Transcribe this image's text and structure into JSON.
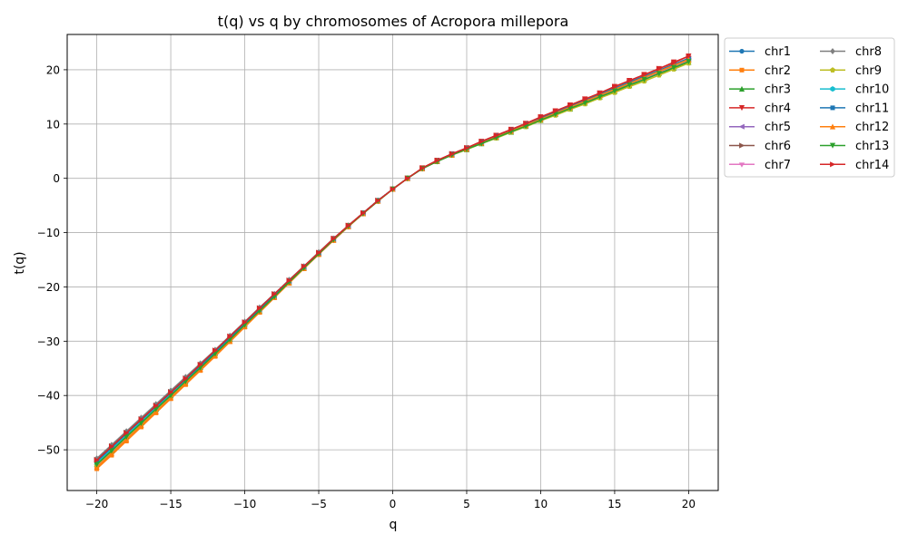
{
  "chart_data": {
    "type": "line",
    "title": "t(q) vs q by chromosomes of Acropora millepora",
    "xlabel": "q",
    "ylabel": "t(q)",
    "xlim": [
      -22,
      22
    ],
    "ylim": [
      -57.5,
      26.5
    ],
    "xticks": [
      -20,
      -15,
      -10,
      -5,
      0,
      5,
      10,
      15,
      20
    ],
    "xtick_labels": [
      "−20",
      "−15",
      "−10",
      "−5",
      "0",
      "5",
      "10",
      "15",
      "20"
    ],
    "yticks": [
      -50,
      -40,
      -30,
      -20,
      -10,
      0,
      10,
      20
    ],
    "ytick_labels": [
      "−50",
      "−40",
      "−30",
      "−20",
      "−10",
      "0",
      "10",
      "20"
    ],
    "grid": true,
    "legend": {
      "placement": "outside-right",
      "columns": 2
    },
    "x": [
      -20,
      -19,
      -18,
      -17,
      -16,
      -15,
      -14,
      -13,
      -12,
      -11,
      -10,
      -9,
      -8,
      -7,
      -6,
      -5,
      -4,
      -3,
      -2,
      -1,
      0,
      1,
      2,
      3,
      4,
      5,
      6,
      7,
      8,
      9,
      10,
      11,
      12,
      13,
      14,
      15,
      16,
      17,
      18,
      19,
      20
    ],
    "series": [
      {
        "name": "chr1",
        "color": "#1f77b4",
        "marker": "circle",
        "values": [
          -52.2,
          -49.7,
          -47.1,
          -44.6,
          -42.1,
          -39.6,
          -37.1,
          -34.6,
          -32.0,
          -29.5,
          -26.8,
          -24.2,
          -21.5,
          -19.0,
          -16.4,
          -13.8,
          -11.2,
          -8.8,
          -6.4,
          -4.1,
          -2.0,
          0.0,
          1.8,
          3.2,
          4.4,
          5.5,
          6.6,
          7.7,
          8.8,
          9.9,
          11.0,
          12.1,
          13.2,
          14.3,
          15.4,
          16.5,
          17.6,
          18.7,
          19.8,
          20.9,
          22.0
        ]
      },
      {
        "name": "chr2",
        "color": "#ff7f0e",
        "marker": "square",
        "values": [
          -53.5,
          -51.0,
          -48.4,
          -45.8,
          -43.2,
          -40.6,
          -38.0,
          -35.4,
          -32.8,
          -30.1,
          -27.4,
          -24.7,
          -22.0,
          -19.3,
          -16.6,
          -14.0,
          -11.4,
          -8.9,
          -6.5,
          -4.2,
          -2.0,
          0.0,
          1.8,
          3.1,
          4.3,
          5.4,
          6.5,
          7.6,
          8.6,
          9.7,
          10.8,
          11.9,
          13.0,
          14.1,
          15.1,
          16.2,
          17.3,
          18.4,
          19.5,
          20.6,
          21.7
        ]
      },
      {
        "name": "chr3",
        "color": "#2ca02c",
        "marker": "triangle-up",
        "values": [
          -52.6,
          -50.1,
          -47.5,
          -45.0,
          -42.5,
          -40.0,
          -37.4,
          -34.8,
          -32.2,
          -29.6,
          -27.0,
          -24.4,
          -21.8,
          -19.2,
          -16.5,
          -13.9,
          -11.3,
          -8.8,
          -6.5,
          -4.1,
          -2.0,
          0.0,
          1.8,
          3.1,
          4.3,
          5.3,
          6.4,
          7.5,
          8.5,
          9.6,
          10.7,
          11.8,
          12.8,
          13.9,
          15.0,
          16.0,
          17.1,
          18.2,
          19.3,
          20.3,
          21.4
        ]
      },
      {
        "name": "chr4",
        "color": "#d62728",
        "marker": "triangle-down",
        "values": [
          -52.0,
          -49.5,
          -47.0,
          -44.5,
          -42.0,
          -39.5,
          -37.0,
          -34.4,
          -31.8,
          -29.2,
          -26.6,
          -24.0,
          -21.4,
          -18.9,
          -16.3,
          -13.7,
          -11.1,
          -8.7,
          -6.4,
          -4.1,
          -2.0,
          0.0,
          1.9,
          3.3,
          4.5,
          5.6,
          6.8,
          7.9,
          9.0,
          10.1,
          11.3,
          12.4,
          13.5,
          14.6,
          15.7,
          16.9,
          18.0,
          19.1,
          20.2,
          21.4,
          22.5
        ]
      },
      {
        "name": "chr5",
        "color": "#9467bd",
        "marker": "triangle-left",
        "values": [
          -52.3,
          -49.8,
          -47.2,
          -44.7,
          -42.2,
          -39.7,
          -37.2,
          -34.6,
          -32.0,
          -29.4,
          -26.8,
          -24.2,
          -21.6,
          -19.0,
          -16.4,
          -13.8,
          -11.2,
          -8.8,
          -6.4,
          -4.1,
          -2.0,
          0.0,
          1.8,
          3.2,
          4.4,
          5.5,
          6.6,
          7.7,
          8.8,
          9.9,
          11.0,
          12.1,
          13.2,
          14.3,
          15.4,
          16.5,
          17.6,
          18.7,
          19.8,
          20.9,
          22.0
        ]
      },
      {
        "name": "chr6",
        "color": "#8c564b",
        "marker": "triangle-right",
        "values": [
          -51.8,
          -49.3,
          -46.8,
          -44.3,
          -41.8,
          -39.3,
          -36.8,
          -34.3,
          -31.7,
          -29.1,
          -26.5,
          -23.9,
          -21.3,
          -18.8,
          -16.2,
          -13.7,
          -11.1,
          -8.7,
          -6.4,
          -4.1,
          -2.0,
          0.0,
          1.8,
          3.2,
          4.5,
          5.6,
          6.7,
          7.8,
          8.9,
          10.0,
          11.1,
          12.2,
          13.3,
          14.4,
          15.5,
          16.6,
          17.7,
          18.8,
          19.9,
          21.0,
          22.1
        ]
      },
      {
        "name": "chr7",
        "color": "#e377c2",
        "marker": "tri-down",
        "values": [
          -53.0,
          -50.5,
          -47.9,
          -45.3,
          -42.8,
          -40.2,
          -37.7,
          -35.1,
          -32.5,
          -29.8,
          -27.2,
          -24.5,
          -21.9,
          -19.2,
          -16.6,
          -14.0,
          -11.4,
          -8.9,
          -6.5,
          -4.2,
          -2.0,
          0.0,
          1.8,
          3.1,
          4.3,
          5.4,
          6.5,
          7.6,
          8.7,
          9.7,
          10.8,
          11.9,
          13.0,
          14.0,
          15.1,
          16.2,
          17.3,
          18.3,
          19.4,
          20.5,
          21.6
        ]
      },
      {
        "name": "chr8",
        "color": "#7f7f7f",
        "marker": "diamond",
        "values": [
          -51.6,
          -49.1,
          -46.6,
          -44.1,
          -41.6,
          -39.1,
          -36.6,
          -34.1,
          -31.6,
          -29.0,
          -26.4,
          -23.8,
          -21.3,
          -18.7,
          -16.2,
          -13.6,
          -11.1,
          -8.7,
          -6.4,
          -4.1,
          -2.0,
          0.0,
          1.8,
          3.2,
          4.4,
          5.5,
          6.6,
          7.7,
          8.8,
          9.9,
          11.0,
          12.1,
          13.2,
          14.3,
          15.4,
          16.5,
          17.6,
          18.7,
          19.8,
          20.9,
          22.0
        ]
      },
      {
        "name": "chr9",
        "color": "#bcbd22",
        "marker": "pentagon",
        "values": [
          -52.8,
          -50.3,
          -47.7,
          -45.2,
          -42.6,
          -40.1,
          -37.5,
          -34.9,
          -32.3,
          -29.7,
          -27.1,
          -24.5,
          -21.8,
          -19.2,
          -16.6,
          -14.0,
          -11.3,
          -8.8,
          -6.5,
          -4.2,
          -2.0,
          0.0,
          1.8,
          3.1,
          4.3,
          5.3,
          6.4,
          7.4,
          8.5,
          9.5,
          10.6,
          11.6,
          12.7,
          13.7,
          14.8,
          15.8,
          16.9,
          17.9,
          19.0,
          20.1,
          21.2
        ]
      },
      {
        "name": "chr10",
        "color": "#17becf",
        "marker": "hexagon",
        "values": [
          -52.4,
          -49.9,
          -47.3,
          -44.8,
          -42.3,
          -39.8,
          -37.2,
          -34.7,
          -32.1,
          -29.5,
          -26.9,
          -24.3,
          -21.7,
          -19.1,
          -16.5,
          -13.9,
          -11.3,
          -8.8,
          -6.4,
          -4.1,
          -2.0,
          0.0,
          1.8,
          3.2,
          4.4,
          5.5,
          6.6,
          7.6,
          8.7,
          9.8,
          10.9,
          12.0,
          13.1,
          14.2,
          15.3,
          16.4,
          17.5,
          18.6,
          19.7,
          20.8,
          21.9
        ]
      },
      {
        "name": "chr11",
        "color": "#1f77b4",
        "marker": "square",
        "values": [
          -52.1,
          -49.6,
          -47.0,
          -44.5,
          -42.0,
          -39.5,
          -37.0,
          -34.5,
          -31.9,
          -29.3,
          -26.7,
          -24.1,
          -21.5,
          -18.9,
          -16.3,
          -13.8,
          -11.2,
          -8.8,
          -6.4,
          -4.1,
          -2.0,
          0.0,
          1.8,
          3.2,
          4.4,
          5.5,
          6.7,
          7.8,
          8.9,
          10.0,
          11.1,
          12.2,
          13.3,
          14.4,
          15.5,
          16.6,
          17.7,
          18.8,
          19.9,
          21.0,
          22.1
        ]
      },
      {
        "name": "chr12",
        "color": "#ff7f0e",
        "marker": "triangle-up",
        "values": [
          -53.2,
          -50.7,
          -48.1,
          -45.5,
          -43.0,
          -40.4,
          -37.8,
          -35.2,
          -32.6,
          -30.0,
          -27.3,
          -24.6,
          -21.9,
          -19.3,
          -16.6,
          -14.0,
          -11.4,
          -8.9,
          -6.5,
          -4.2,
          -2.0,
          0.0,
          1.8,
          3.2,
          4.3,
          5.4,
          6.5,
          7.6,
          8.7,
          9.8,
          10.9,
          12.0,
          13.1,
          14.2,
          15.3,
          16.4,
          17.5,
          18.6,
          19.7,
          20.8,
          21.9
        ]
      },
      {
        "name": "chr13",
        "color": "#2ca02c",
        "marker": "triangle-down",
        "values": [
          -52.7,
          -50.2,
          -47.6,
          -45.1,
          -42.5,
          -40.0,
          -37.4,
          -34.9,
          -32.3,
          -29.7,
          -27.0,
          -24.4,
          -21.8,
          -19.1,
          -16.5,
          -13.9,
          -11.3,
          -8.8,
          -6.5,
          -4.2,
          -2.0,
          0.0,
          1.8,
          3.1,
          4.3,
          5.4,
          6.4,
          7.5,
          8.6,
          9.6,
          10.7,
          11.8,
          12.9,
          13.9,
          15.0,
          16.1,
          17.2,
          18.2,
          19.3,
          20.4,
          21.5
        ]
      },
      {
        "name": "chr14",
        "color": "#d62728",
        "marker": "triangle-right",
        "values": [
          -51.9,
          -49.4,
          -46.9,
          -44.4,
          -41.9,
          -39.4,
          -36.9,
          -34.3,
          -31.7,
          -29.1,
          -26.5,
          -23.9,
          -21.3,
          -18.8,
          -16.2,
          -13.7,
          -11.1,
          -8.7,
          -6.4,
          -4.1,
          -2.0,
          0.0,
          1.9,
          3.3,
          4.5,
          5.6,
          6.8,
          7.9,
          9.0,
          10.1,
          11.3,
          12.4,
          13.5,
          14.6,
          15.7,
          16.9,
          18.0,
          19.1,
          20.2,
          21.3,
          22.5
        ]
      }
    ]
  }
}
